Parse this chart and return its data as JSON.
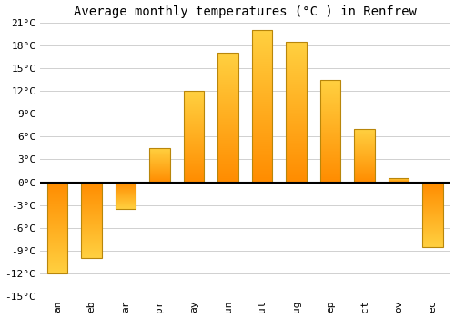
{
  "title": "Average monthly temperatures (°C ) in Renfrew",
  "months": [
    "an",
    "eb",
    "ar",
    "pr",
    "ay",
    "un",
    "ul",
    "ug",
    "ep",
    "ct",
    "ov",
    "ec"
  ],
  "values": [
    -12.0,
    -10.0,
    -3.5,
    4.5,
    12.0,
    17.0,
    20.0,
    18.5,
    13.5,
    7.0,
    0.5,
    -8.5
  ],
  "bar_color": "#FFA500",
  "bar_edge_color": "#B8860B",
  "ylim": [
    -15,
    21
  ],
  "yticks": [
    -15,
    -12,
    -9,
    -6,
    -3,
    0,
    3,
    6,
    9,
    12,
    15,
    18,
    21
  ],
  "ytick_labels": [
    "-15°C",
    "-12°C",
    "-9°C",
    "-6°C",
    "-3°C",
    "0°C",
    "3°C",
    "6°C",
    "9°C",
    "12°C",
    "15°C",
    "18°C",
    "21°C"
  ],
  "background_color": "#ffffff",
  "grid_color": "#d0d0d0",
  "title_fontsize": 10,
  "tick_fontsize": 8,
  "zero_line_color": "#000000",
  "bar_width": 0.6,
  "gradient_top": "#FFD040",
  "gradient_bottom": "#FF8C00"
}
